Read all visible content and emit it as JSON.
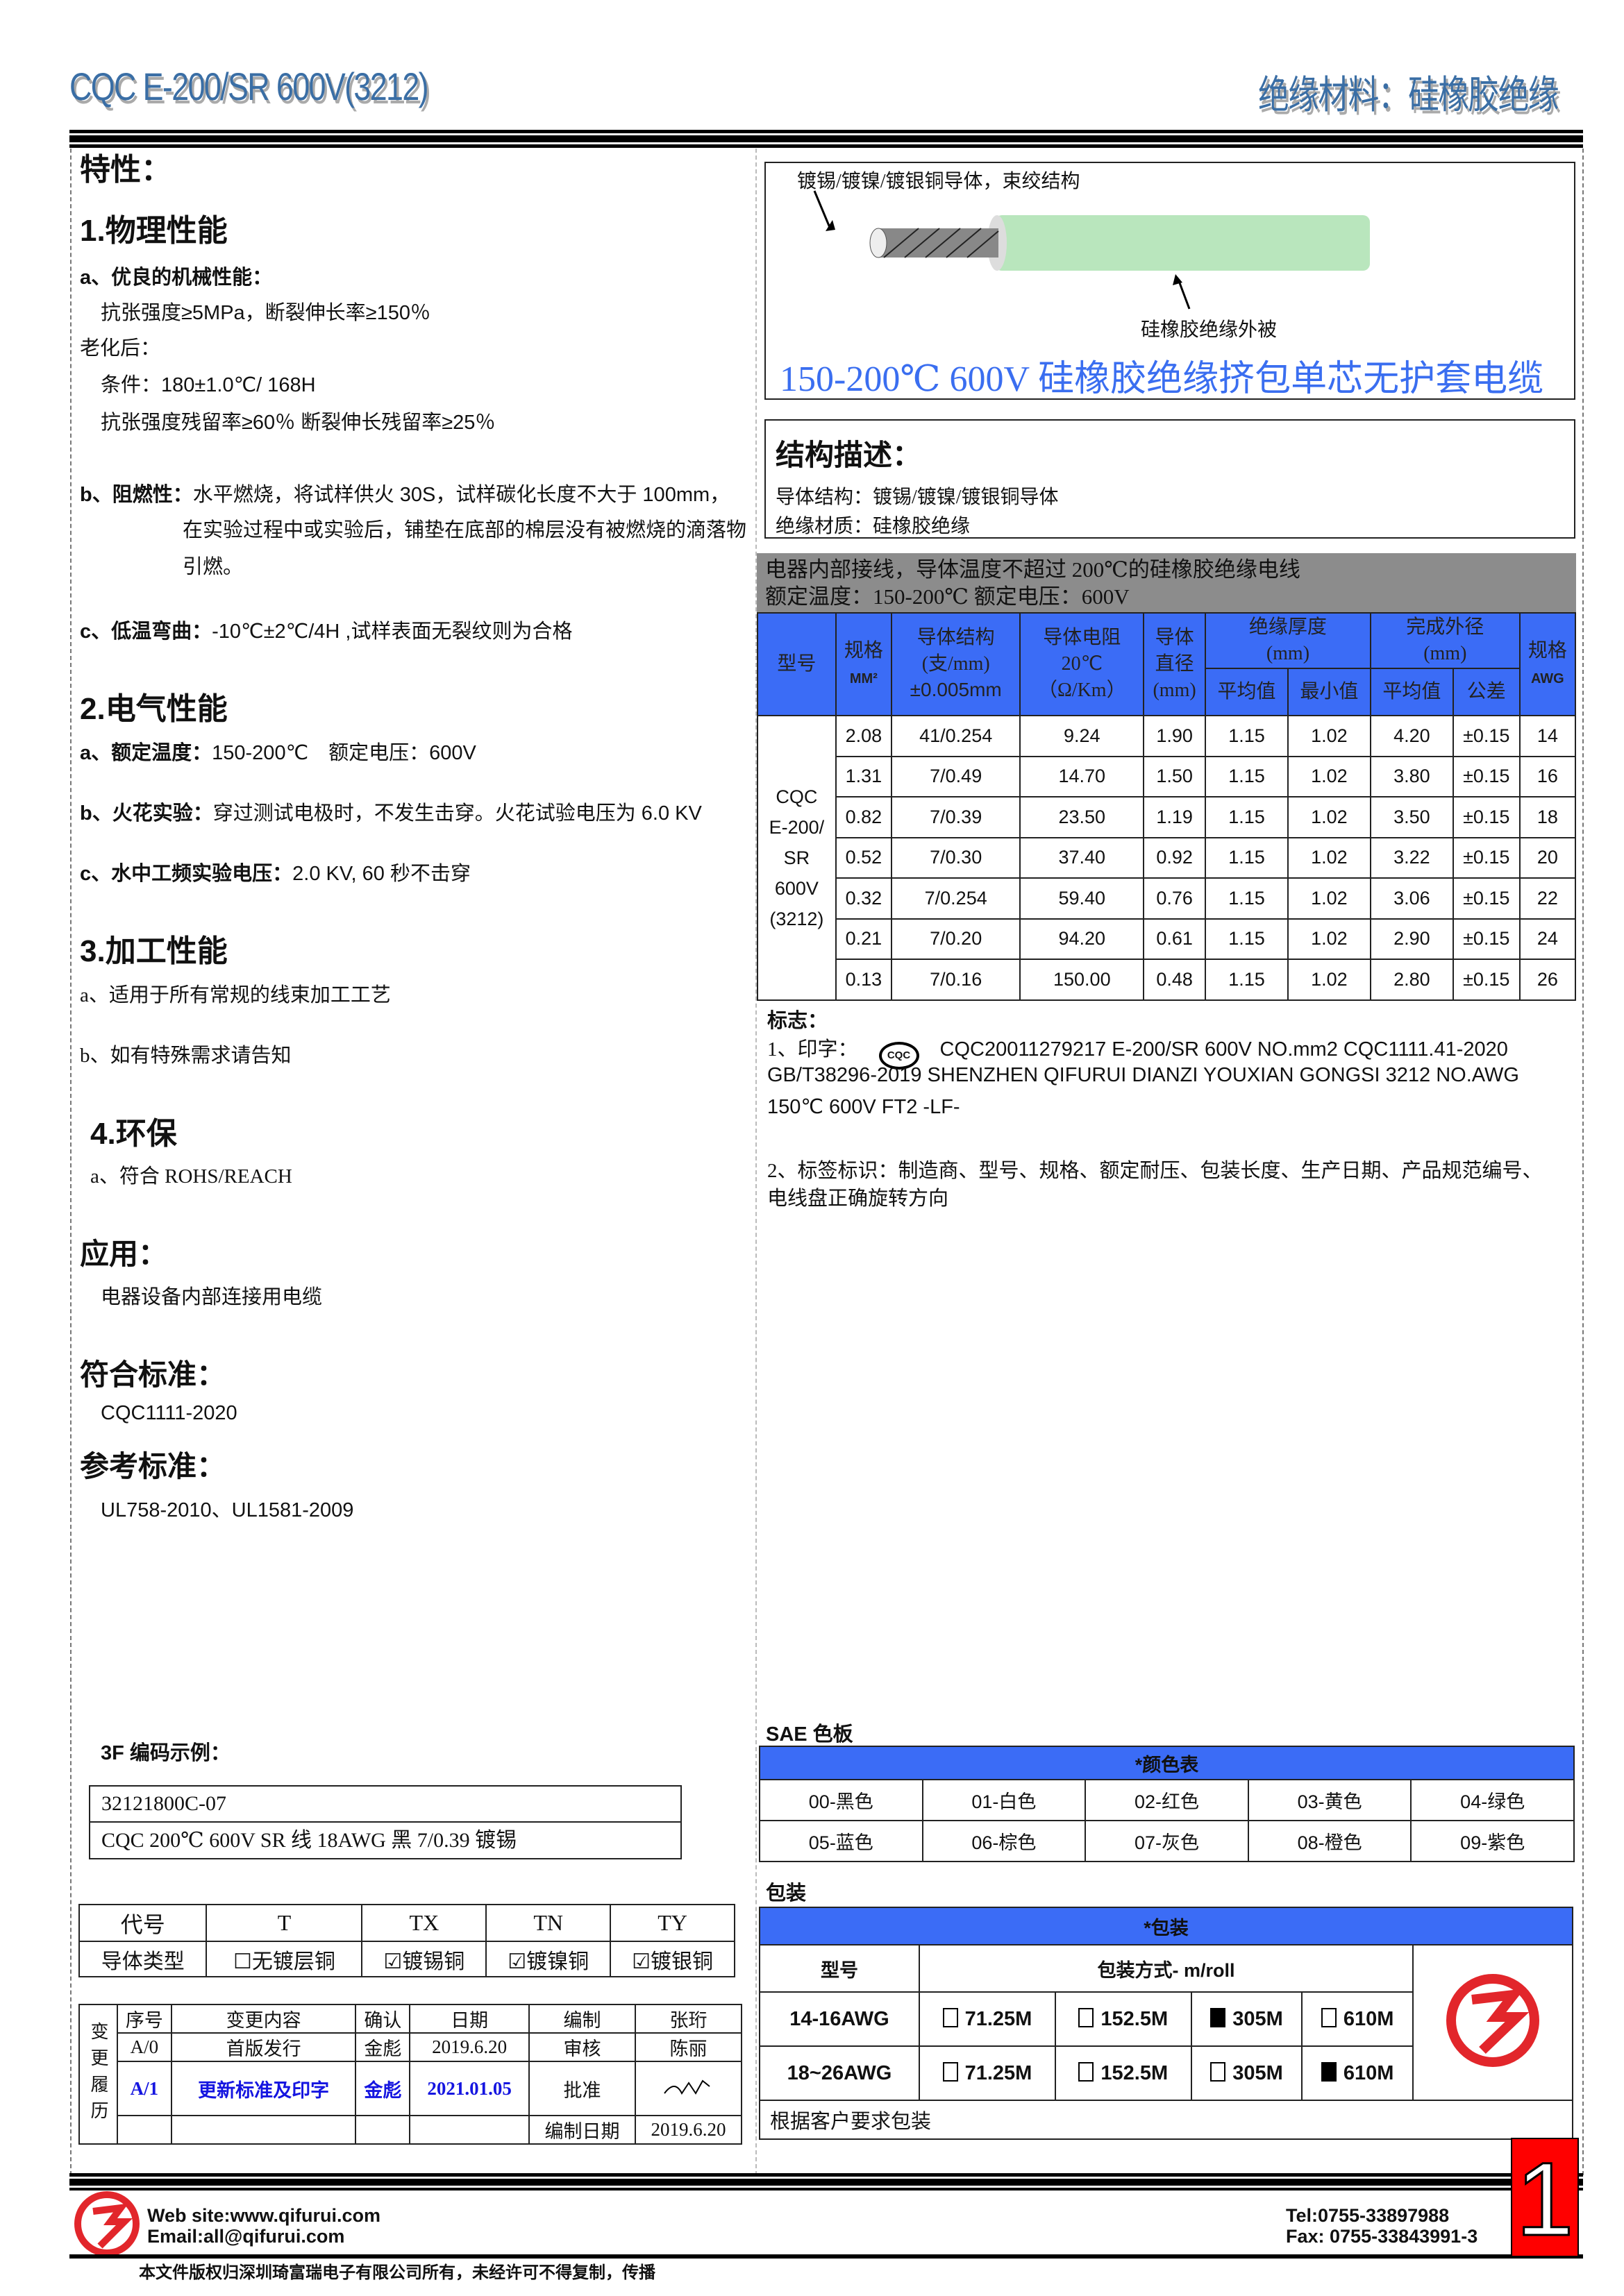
{
  "header": {
    "model": "CQC E-200/SR 600V(3212)",
    "category": "绝缘材料：硅橡胶绝缘"
  },
  "left": {
    "features_title": "特性：",
    "s1": {
      "title": "1.物理性能",
      "a_label": "a、优良的机械性能：",
      "a1": "抗张强度≥5MPa，断裂伸长率≥150％",
      "aging": "老化后：",
      "cond": "条件：180±1.0℃/ 168H",
      "residual": "抗张强度残留率≥60％ 断裂伸长残留率≥25％",
      "b_label": "b、阻燃性：",
      "b1": "水平燃烧，将试样供火 30S，试样碳化长度不大于 100mm，",
      "b2": "在实验过程中或实验后，铺垫在底部的棉层没有被燃烧的滴落物",
      "b3": "引燃。",
      "c_label": "c、低温弯曲：",
      "c1": "-10℃±2℃/4H ,试样表面无裂纹则为合格"
    },
    "s2": {
      "title": "2.电气性能",
      "a_label": "a、额定温度：",
      "a1": "150-200℃　额定电压：600V",
      "b_label": "b、火花实验：",
      "b1": "穿过测试电极时，不发生击穿。火花试验电压为 6.0 KV",
      "c_label": "c、水中工频实验电压：",
      "c1": "2.0 KV, 60 秒不击穿"
    },
    "s3": {
      "title": "3.加工性能",
      "a": "a、适用于所有常规的线束加工工艺",
      "b": "b、如有特殊需求请告知"
    },
    "s4": {
      "title": "4.环保",
      "a": "a、符合 ROHS/REACH"
    },
    "application": {
      "title": "应用：",
      "text": "电器设备内部连接用电缆"
    },
    "standard": {
      "title": "符合标准：",
      "text": "CQC1111-2020"
    },
    "reference": {
      "title": "参考标准：",
      "text": "UL758-2010、UL1581-2009"
    },
    "coding": {
      "title": "3F 编码示例：",
      "line1": "32121800C-07",
      "line2": "CQC 200℃  600V SR 线  18AWG  黑  7/0.39 镀锡"
    },
    "conductor_table": {
      "headers": [
        "代号",
        "T",
        "TX",
        "TN",
        "TY"
      ],
      "row_label": "导体类型",
      "options": [
        {
          "label": "无镀层铜",
          "checked": false
        },
        {
          "label": "镀锡铜",
          "checked": true
        },
        {
          "label": "镀镍铜",
          "checked": true
        },
        {
          "label": "镀银铜",
          "checked": true
        }
      ]
    },
    "history": {
      "side": "变更履历",
      "h": [
        "序号",
        "变更内容",
        "确认",
        "日期",
        "编制",
        "张珩"
      ],
      "r1": [
        "A/0",
        "首版发行",
        "金彪",
        "2019.6.20",
        "审核",
        "陈丽"
      ],
      "r2": [
        "A/1",
        "更新标准及印字",
        "金彪",
        "2021.01.05",
        "批准"
      ],
      "r3_label": "编制日期",
      "r3_value": "2019.6.20",
      "highlight": "#1515e0"
    }
  },
  "right": {
    "cable": {
      "conductor_note": "镀锡/镀镍/镀银铜导体，束绞结构",
      "jacket_note": "硅橡胶绝缘外被",
      "title": "150-200℃  600V 硅橡胶绝缘挤包单芯无护套电缆",
      "jacket_color": "#b9e6bd",
      "title_color": "#3a6ef0"
    },
    "structure": {
      "title": "结构描述：",
      "conductor": "导体结构：镀锡/镀镍/镀银铜导体",
      "insulation": "绝缘材质：硅橡胶绝缘"
    },
    "band": {
      "line1": "电器内部接线，导体温度不超过 200℃的硅橡胶绝缘电线",
      "line2": "额定温度：150-200℃  额定电压：600V"
    },
    "spec": {
      "h_model": "型号",
      "h_size": "规格",
      "h_size_unit": "MM²",
      "h_struct": "导体结构",
      "h_struct_u": "(支/mm)",
      "h_struct_tol": "±0.005mm",
      "h_res": "导体电阻",
      "h_res_t": "20℃",
      "h_res_u": "（Ω/Km）",
      "h_dia": "导体",
      "h_dia2": "直径",
      "h_dia_u": "(mm)",
      "h_ins": "绝缘厚度",
      "h_ins_u": "(mm)",
      "h_od": "完成外径",
      "h_od_u": "(mm)",
      "h_avg": "平均值",
      "h_min": "最小值",
      "h_avg2": "平均值",
      "h_tol": "公差",
      "h_awg": "规格",
      "h_awg_u": "AWG",
      "model_lines": [
        "CQC",
        "E-200/",
        "SR",
        "600V",
        "(3212)"
      ],
      "rows": [
        [
          "2.08",
          "41/0.254",
          "9.24",
          "1.90",
          "1.15",
          "1.02",
          "4.20",
          "±0.15",
          "14"
        ],
        [
          "1.31",
          "7/0.49",
          "14.70",
          "1.50",
          "1.15",
          "1.02",
          "3.80",
          "±0.15",
          "16"
        ],
        [
          "0.82",
          "7/0.39",
          "23.50",
          "1.19",
          "1.15",
          "1.02",
          "3.50",
          "±0.15",
          "18"
        ],
        [
          "0.52",
          "7/0.30",
          "37.40",
          "0.92",
          "1.15",
          "1.02",
          "3.22",
          "±0.15",
          "20"
        ],
        [
          "0.32",
          "7/0.254",
          "59.40",
          "0.76",
          "1.15",
          "1.02",
          "3.06",
          "±0.15",
          "22"
        ],
        [
          "0.21",
          "7/0.20",
          "94.20",
          "0.61",
          "1.15",
          "1.02",
          "2.90",
          "±0.15",
          "24"
        ],
        [
          "0.13",
          "7/0.16",
          "150.00",
          "0.48",
          "1.15",
          "1.02",
          "2.80",
          "±0.15",
          "26"
        ]
      ]
    },
    "marking": {
      "title": "标志：",
      "p1_label": "1、印字：",
      "logo": "CQC",
      "p1a": "CQC20011279217   E-200/SR   600V   NO.mm2   CQC1111.41-2020",
      "p1b": "GB/T38296-2019 SHENZHEN QIFURUI DIANZI YOUXIAN GONGSI      3212 NO.AWG",
      "p1c": "150℃  600V FT2 -LF-",
      "p2a": "2、标签标识：制造商、型号、规格、额定耐压、包装长度、生产日期、产品规范编号、",
      "p2b": "电线盘正确旋转方向"
    },
    "colors": {
      "title": "SAE 色板",
      "header": "*颜色表",
      "items": [
        "00-黑色",
        "01-白色",
        "02-红色",
        "03-黄色",
        "04-绿色",
        "05-蓝色",
        "06-棕色",
        "07-灰色",
        "08-橙色",
        "09-紫色"
      ]
    },
    "packing": {
      "title": "包装",
      "header": "*包装",
      "h_model": "型号",
      "h_method": "包装方式- m/roll",
      "rows": [
        {
          "model": "14-16AWG",
          "opts": [
            [
              "71.25M",
              false
            ],
            [
              "152.5M",
              false
            ],
            [
              "305M",
              true
            ],
            [
              "610M",
              false
            ]
          ]
        },
        {
          "model": "18~26AWG",
          "opts": [
            [
              "71.25M",
              false
            ],
            [
              "152.5M",
              false
            ],
            [
              "305M",
              false
            ],
            [
              "610M",
              true
            ]
          ]
        }
      ],
      "note": "根据客户要求包装"
    },
    "header_blue": "#3b6cf6"
  },
  "footer": {
    "web": "Web site:www.qifurui.com",
    "email": "Email:all@qifurui.com",
    "tel": "Tel:0755-33897988",
    "fax": "Fax: 0755-33843991-3",
    "copyright": "本文件版权归深圳琦富瑞电子有限公司所有，未经许可不得复制，传播",
    "page": "1"
  }
}
